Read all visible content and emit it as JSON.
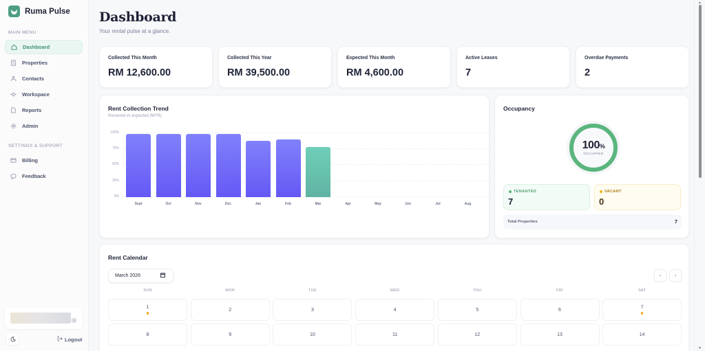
{
  "app": {
    "name": "Ruma Pulse"
  },
  "sidebar": {
    "main_menu_label": "MAIN MENU",
    "items": [
      {
        "label": "Dashboard",
        "icon": "home-icon",
        "active": true
      },
      {
        "label": "Properties",
        "icon": "building-icon"
      },
      {
        "label": "Contacts",
        "icon": "users-icon"
      },
      {
        "label": "Workspace",
        "icon": "workflow-icon"
      },
      {
        "label": "Reports",
        "icon": "file-icon"
      },
      {
        "label": "Admin",
        "icon": "gear-icon"
      }
    ],
    "settings_label": "SETTINGS & SUPPORT",
    "settings_items": [
      {
        "label": "Billing",
        "icon": "credit-card-icon"
      },
      {
        "label": "Feedback",
        "icon": "chat-bubble-icon"
      }
    ],
    "logout_label": "Logout"
  },
  "header": {
    "title": "Dashboard",
    "subtitle": "Your rental pulse at a glance."
  },
  "stats": [
    {
      "label": "Collected This Month",
      "value": "RM 12,600.00"
    },
    {
      "label": "Collected This Year",
      "value": "RM 39,500.00"
    },
    {
      "label": "Expected This Month",
      "value": "RM 4,600.00"
    },
    {
      "label": "Active Leases",
      "value": "7"
    },
    {
      "label": "Overdue Payments",
      "value": "2"
    }
  ],
  "chart_data": {
    "type": "bar",
    "title": "Rent Collection Trend",
    "subtitle": "Received vs expected (MYR)",
    "xlabel": "",
    "ylabel": "",
    "categories": [
      "Sept",
      "Oct",
      "Nov",
      "Dec",
      "Jan",
      "Feb",
      "Mar",
      "Apr",
      "May",
      "Jun",
      "Jul",
      "Aug"
    ],
    "values": [
      100,
      100,
      100,
      100,
      89,
      91,
      79,
      0,
      0,
      0,
      0,
      0
    ],
    "yticks": [
      "100%",
      "75%",
      "50%",
      "25%",
      "0%"
    ],
    "ylim": [
      0,
      100
    ],
    "grid": true,
    "current_index": 6,
    "colors": {
      "past": "#6e63f7",
      "current": "#66c2ad"
    }
  },
  "occupancy": {
    "title": "Occupancy",
    "percent": "100",
    "percent_sign": "%",
    "caption": "OCCUPIED",
    "tenanted_label": "TENANTED",
    "tenanted_value": "7",
    "vacant_label": "VACANT",
    "vacant_value": "0",
    "total_label": "Total Properties",
    "total_value": "7",
    "colors": {
      "ring": "#5bb67d",
      "tenanted": "#5bb67d",
      "vacant": "#f1b411"
    }
  },
  "calendar": {
    "title": "Rent Calendar",
    "month_value": "March 2026",
    "prev_label": "‹",
    "next_label": "›",
    "days_of_week": [
      "SUN",
      "MON",
      "TUE",
      "WED",
      "THU",
      "FRI",
      "SAT"
    ],
    "weeks": [
      [
        {
          "d": "1",
          "dot": true
        },
        {
          "d": "2"
        },
        {
          "d": "3"
        },
        {
          "d": "4"
        },
        {
          "d": "5"
        },
        {
          "d": "6"
        },
        {
          "d": "7",
          "dot": true
        }
      ],
      [
        {
          "d": "8"
        },
        {
          "d": "9"
        },
        {
          "d": "10"
        },
        {
          "d": "11"
        },
        {
          "d": "12"
        },
        {
          "d": "13"
        },
        {
          "d": "14"
        }
      ]
    ]
  }
}
